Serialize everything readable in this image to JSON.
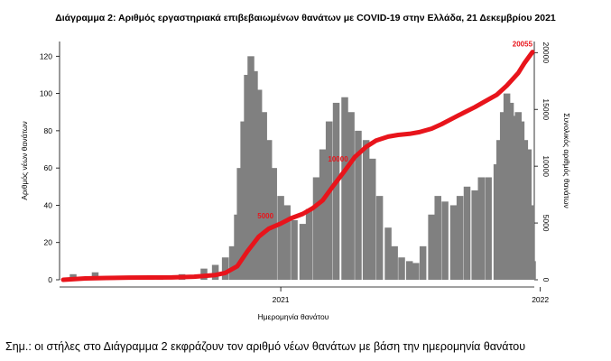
{
  "title": "Διάγραμμα 2: Αριθμός εργαστηριακά επιβεβαιωμένων θανάτων με COVID-19 στην Ελλάδα, 21 Δεκεμβρίου 2021",
  "footnote": "Σημ.: οι στήλες στο Διάγραμμα 2 εκφράζουν τον αριθμό νέων θανάτων με βάση την ημερομηνία θανάτου",
  "colors": {
    "bars": "#808080",
    "cumulative_line": "#e8141b"
  },
  "chart_data": {
    "type": "bar",
    "title": "Διάγραμμα 2: Αριθμός εργαστηριακά επιβεβαιωμένων θανάτων με COVID-19 στην Ελλάδα, 21 Δεκεμβρίου 2021",
    "xlabel": "Ημερομηνία θανάτου",
    "ylabel": "Αριθμός νέων θανάτων",
    "y2label": "Συνολικός αριθμός θανάτων",
    "xlim": [
      "2020-03-01",
      "2021-12-21"
    ],
    "x_ticks": [
      "2021",
      "2022"
    ],
    "ylim": [
      0,
      125
    ],
    "y_ticks": [
      0,
      20,
      40,
      60,
      80,
      100,
      120
    ],
    "y2lim": [
      0,
      20500
    ],
    "y2_ticks": [
      0,
      5000,
      10000,
      15000,
      20000
    ],
    "grid": false,
    "series": [
      {
        "type": "bar",
        "axis": "left",
        "x": [
          "2020-03-15",
          "2020-04-15",
          "2020-05-15",
          "2020-06-15",
          "2020-07-15",
          "2020-08-15",
          "2020-09-15",
          "2020-10-01",
          "2020-10-15",
          "2020-10-25",
          "2020-11-01",
          "2020-11-05",
          "2020-11-10",
          "2020-11-15",
          "2020-11-20",
          "2020-11-25",
          "2020-12-01",
          "2020-12-08",
          "2020-12-15",
          "2020-12-22",
          "2021-01-01",
          "2021-01-10",
          "2021-01-20",
          "2021-02-01",
          "2021-02-10",
          "2021-02-20",
          "2021-03-01",
          "2021-03-10",
          "2021-03-20",
          "2021-04-01",
          "2021-04-10",
          "2021-04-20",
          "2021-05-01",
          "2021-05-10",
          "2021-05-20",
          "2021-06-01",
          "2021-06-10",
          "2021-06-20",
          "2021-07-01",
          "2021-07-10",
          "2021-07-20",
          "2021-08-01",
          "2021-08-10",
          "2021-08-20",
          "2021-09-01",
          "2021-09-10",
          "2021-09-20",
          "2021-10-01",
          "2021-10-10",
          "2021-10-20",
          "2021-11-01",
          "2021-11-05",
          "2021-11-10",
          "2021-11-15",
          "2021-11-20",
          "2021-11-25",
          "2021-12-01",
          "2021-12-05",
          "2021-12-10",
          "2021-12-15",
          "2021-12-19",
          "2021-12-21"
        ],
        "values": [
          3,
          4,
          2,
          1,
          1,
          3,
          6,
          8,
          12,
          18,
          35,
          60,
          85,
          110,
          120,
          112,
          102,
          90,
          75,
          60,
          45,
          40,
          32,
          30,
          38,
          55,
          70,
          85,
          95,
          98,
          90,
          80,
          75,
          65,
          45,
          28,
          18,
          12,
          10,
          9,
          18,
          35,
          45,
          42,
          40,
          45,
          50,
          48,
          55,
          55,
          62,
          75,
          90,
          100,
          95,
          88,
          90,
          85,
          75,
          70,
          40,
          10
        ]
      }
    ],
    "cumulative": {
      "axis": "right",
      "x": [
        "2020-03-01",
        "2020-04-01",
        "2020-05-01",
        "2020-06-01",
        "2020-07-01",
        "2020-08-01",
        "2020-09-01",
        "2020-10-01",
        "2020-10-15",
        "2020-11-01",
        "2020-11-15",
        "2020-12-01",
        "2020-12-15",
        "2021-01-01",
        "2021-01-15",
        "2021-02-01",
        "2021-02-15",
        "2021-03-01",
        "2021-03-15",
        "2021-04-01",
        "2021-04-15",
        "2021-05-01",
        "2021-05-15",
        "2021-06-01",
        "2021-06-15",
        "2021-07-01",
        "2021-07-15",
        "2021-08-01",
        "2021-08-15",
        "2021-09-01",
        "2021-09-15",
        "2021-10-01",
        "2021-10-15",
        "2021-11-01",
        "2021-11-15",
        "2021-12-01",
        "2021-12-10",
        "2021-12-21"
      ],
      "values": [
        0,
        120,
        160,
        190,
        200,
        210,
        270,
        420,
        600,
        1200,
        2500,
        3800,
        4500,
        4950,
        5400,
        5800,
        6300,
        7000,
        8200,
        9600,
        10800,
        11700,
        12250,
        12600,
        12750,
        12850,
        13000,
        13300,
        13700,
        14250,
        14700,
        15200,
        15700,
        16300,
        17100,
        18200,
        19100,
        20055
      ]
    },
    "annotations": [
      "5000",
      "10000",
      "20055"
    ]
  }
}
